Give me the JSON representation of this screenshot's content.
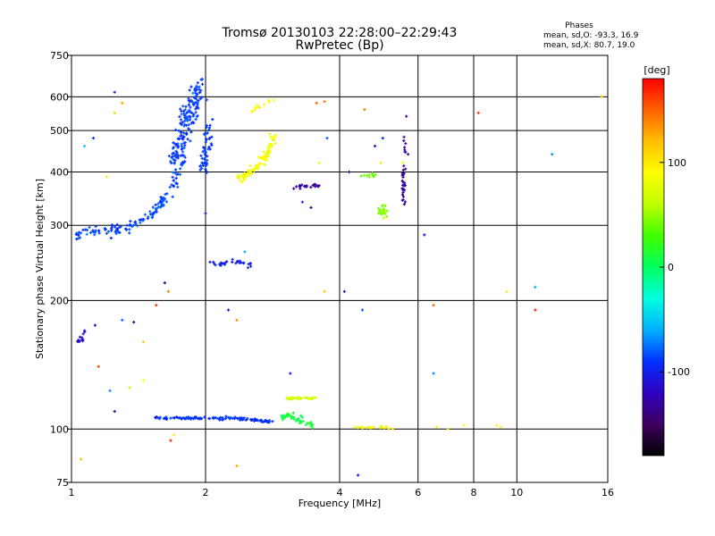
{
  "header": {
    "title_line1": "Tromsø 20130103 22:28:00–22:29:43",
    "title_line2": "RwPretec (Bp)"
  },
  "info": {
    "heading": "Phases",
    "line_o": "mean, sd,O: -93.3, 16.9",
    "line_x": "mean, sd,X:  80.7, 19.0"
  },
  "colorbar": {
    "label": "[deg]",
    "range": [
      -180,
      180
    ],
    "ticks": [
      {
        "value": 100,
        "label": "100"
      },
      {
        "value": 0,
        "label": "0"
      },
      {
        "value": -100,
        "label": "-100"
      }
    ],
    "colors": [
      "#000000",
      "#400060",
      "#3000c0",
      "#0030ff",
      "#00b0ff",
      "#00ffe0",
      "#00ff60",
      "#40ff00",
      "#c0ff00",
      "#ffff00",
      "#ffc000",
      "#ff6000",
      "#ff0000"
    ]
  },
  "chart_data": {
    "type": "scatter",
    "xlabel": "Frequency [MHz]",
    "ylabel": "Stationary phase Virtual Height [km]",
    "xscale": "log",
    "yscale": "log",
    "xlim": [
      1,
      16
    ],
    "ylim": [
      75,
      750
    ],
    "grid": true,
    "x_ticks": [
      {
        "value": 1,
        "label": "1"
      },
      {
        "value": 2,
        "label": "2"
      },
      {
        "value": 4,
        "label": "4"
      },
      {
        "value": 6,
        "label": "6"
      },
      {
        "value": 8,
        "label": "8"
      },
      {
        "value": 10,
        "label": "10"
      },
      {
        "value": 16,
        "label": "16"
      }
    ],
    "y_ticks": [
      {
        "value": 75,
        "label": "75"
      },
      {
        "value": 100,
        "label": "100"
      },
      {
        "value": 200,
        "label": "200"
      },
      {
        "value": 300,
        "label": "300"
      },
      {
        "value": 400,
        "label": "400"
      },
      {
        "value": 500,
        "label": "500"
      },
      {
        "value": 600,
        "label": "600"
      },
      {
        "value": 750,
        "label": "750"
      }
    ],
    "clusters": [
      {
        "name": "F-region O trace (low)",
        "points": [
          [
            1.0,
            288
          ],
          [
            1.03,
            285
          ],
          [
            1.06,
            290
          ],
          [
            1.1,
            292
          ],
          [
            1.15,
            289
          ],
          [
            1.2,
            293
          ],
          [
            1.25,
            292
          ],
          [
            1.3,
            295
          ],
          [
            1.35,
            297
          ],
          [
            1.4,
            302
          ],
          [
            1.45,
            310
          ],
          [
            1.5,
            318
          ],
          [
            1.55,
            328
          ],
          [
            1.6,
            340
          ],
          [
            1.65,
            355
          ],
          [
            1.7,
            375
          ],
          [
            1.72,
            390
          ],
          [
            1.75,
            410
          ],
          [
            1.78,
            430
          ]
        ],
        "phase": -85,
        "spread_x": 0.015,
        "spread_y": 0.03,
        "n": 140
      },
      {
        "name": "F-region O trace (upper)",
        "points": [
          [
            1.7,
            420
          ],
          [
            1.75,
            460
          ],
          [
            1.8,
            510
          ],
          [
            1.85,
            560
          ],
          [
            1.9,
            610
          ],
          [
            1.95,
            640
          ]
        ],
        "phase": -88,
        "spread_x": 0.04,
        "spread_y": 0.06,
        "n": 160
      },
      {
        "name": "F-region O trace (branch)",
        "points": [
          [
            1.95,
            400
          ],
          [
            2.0,
            440
          ],
          [
            2.02,
            480
          ],
          [
            2.05,
            520
          ]
        ],
        "phase": -90,
        "spread_x": 0.02,
        "spread_y": 0.05,
        "n": 50
      },
      {
        "name": "F-region X trace",
        "points": [
          [
            2.4,
            385
          ],
          [
            2.5,
            395
          ],
          [
            2.6,
            410
          ],
          [
            2.7,
            430
          ],
          [
            2.8,
            460
          ],
          [
            2.85,
            490
          ]
        ],
        "phase": 85,
        "spread_x": 0.02,
        "spread_y": 0.025,
        "n": 90
      },
      {
        "name": "X trace upper",
        "points": [
          [
            2.5,
            540
          ],
          [
            2.6,
            560
          ],
          [
            2.8,
            590
          ]
        ],
        "phase": 90,
        "spread_x": 0.015,
        "spread_y": 0.02,
        "n": 12
      },
      {
        "name": "Scatter at 245 km",
        "points": [
          [
            2.05,
            245
          ],
          [
            2.2,
            245
          ],
          [
            2.45,
            245
          ],
          [
            2.55,
            243
          ]
        ],
        "phase": -100,
        "spread_x": 0.02,
        "spread_y": 0.015,
        "n": 30
      },
      {
        "name": "Scatter at 370 km",
        "points": [
          [
            3.2,
            370
          ],
          [
            3.45,
            370
          ],
          [
            3.6,
            372
          ]
        ],
        "phase": -130,
        "spread_x": 0.02,
        "spread_y": 0.015,
        "n": 20
      },
      {
        "name": "Blob near 5 MHz (yellow)",
        "points": [
          [
            4.95,
            330
          ],
          [
            5.05,
            320
          ]
        ],
        "phase": 50,
        "spread_x": 0.015,
        "spread_y": 0.03,
        "n": 25
      },
      {
        "name": "Blob near 5.6 MHz (purple)",
        "points": [
          [
            5.6,
            330
          ],
          [
            5.55,
            350
          ],
          [
            5.6,
            480
          ]
        ],
        "phase": -130,
        "spread_x": 0.01,
        "spread_y": 0.04,
        "n": 35
      },
      {
        "name": "E-region trace",
        "points": [
          [
            1.5,
            106
          ],
          [
            1.7,
            106
          ],
          [
            1.9,
            106
          ],
          [
            2.1,
            106
          ],
          [
            2.3,
            106
          ],
          [
            2.6,
            105
          ],
          [
            2.8,
            104
          ]
        ],
        "phase": -90,
        "spread_x": 0.015,
        "spread_y": 0.007,
        "n": 120
      },
      {
        "name": "E-region X trace",
        "points": [
          [
            3.05,
            118
          ],
          [
            3.3,
            118
          ],
          [
            3.55,
            118
          ]
        ],
        "phase": 70,
        "spread_x": 0.02,
        "spread_y": 0.006,
        "n": 35
      },
      {
        "name": "Es mixed",
        "points": [
          [
            2.9,
            106
          ],
          [
            3.1,
            108
          ],
          [
            3.3,
            104
          ],
          [
            3.5,
            102
          ]
        ],
        "phase": 10,
        "spread_x": 0.03,
        "spread_y": 0.02,
        "n": 40
      },
      {
        "name": "Low E near 1 MHz",
        "points": [
          [
            1.03,
            165
          ],
          [
            1.05,
            160
          ],
          [
            1.07,
            170
          ]
        ],
        "phase": -110,
        "spread_x": 0.01,
        "spread_y": 0.02,
        "n": 12
      },
      {
        "name": "Trace near 4.5 MHz",
        "points": [
          [
            4.35,
            101
          ],
          [
            4.6,
            101
          ],
          [
            4.9,
            101
          ],
          [
            5.3,
            101
          ]
        ],
        "phase": 90,
        "spread_x": 0.02,
        "spread_y": 0.006,
        "n": 22
      },
      {
        "name": "Scatter 4.5 MHz 390 km",
        "points": [
          [
            4.45,
            392
          ],
          [
            4.65,
            392
          ],
          [
            4.8,
            392
          ]
        ],
        "phase": 40,
        "spread_x": 0.02,
        "spread_y": 0.01,
        "n": 10
      }
    ],
    "noise_points": [
      {
        "x": 1.25,
        "y": 615,
        "phase": -100
      },
      {
        "x": 1.25,
        "y": 550,
        "phase": 110
      },
      {
        "x": 1.3,
        "y": 580,
        "phase": 130
      },
      {
        "x": 1.12,
        "y": 480,
        "phase": -90
      },
      {
        "x": 1.2,
        "y": 390,
        "phase": 100
      },
      {
        "x": 1.62,
        "y": 220,
        "phase": -130
      },
      {
        "x": 1.65,
        "y": 210,
        "phase": 140
      },
      {
        "x": 1.55,
        "y": 195,
        "phase": 165
      },
      {
        "x": 1.3,
        "y": 180,
        "phase": -80
      },
      {
        "x": 1.38,
        "y": 178,
        "phase": -140
      },
      {
        "x": 1.45,
        "y": 160,
        "phase": 120
      },
      {
        "x": 1.13,
        "y": 175,
        "phase": -110
      },
      {
        "x": 1.15,
        "y": 140,
        "phase": 160
      },
      {
        "x": 1.35,
        "y": 125,
        "phase": 60
      },
      {
        "x": 1.22,
        "y": 123,
        "phase": -70
      },
      {
        "x": 1.45,
        "y": 130,
        "phase": 90
      },
      {
        "x": 1.25,
        "y": 110,
        "phase": -120
      },
      {
        "x": 1.67,
        "y": 94,
        "phase": 170
      },
      {
        "x": 1.7,
        "y": 97,
        "phase": 100
      },
      {
        "x": 1.05,
        "y": 85,
        "phase": 120
      },
      {
        "x": 2.35,
        "y": 82,
        "phase": 130
      },
      {
        "x": 2.25,
        "y": 190,
        "phase": -110
      },
      {
        "x": 2.35,
        "y": 180,
        "phase": 140
      },
      {
        "x": 2.0,
        "y": 320,
        "phase": -120
      },
      {
        "x": 2.45,
        "y": 260,
        "phase": -60
      },
      {
        "x": 3.1,
        "y": 135,
        "phase": -100
      },
      {
        "x": 3.7,
        "y": 210,
        "phase": 120
      },
      {
        "x": 3.7,
        "y": 585,
        "phase": 140
      },
      {
        "x": 3.75,
        "y": 480,
        "phase": -80
      },
      {
        "x": 3.55,
        "y": 580,
        "phase": 150
      },
      {
        "x": 3.3,
        "y": 340,
        "phase": -100
      },
      {
        "x": 3.45,
        "y": 330,
        "phase": -140
      },
      {
        "x": 3.6,
        "y": 420,
        "phase": 80
      },
      {
        "x": 4.1,
        "y": 210,
        "phase": -130
      },
      {
        "x": 4.2,
        "y": 400,
        "phase": -130
      },
      {
        "x": 4.5,
        "y": 190,
        "phase": -80
      },
      {
        "x": 4.4,
        "y": 78,
        "phase": -100
      },
      {
        "x": 4.55,
        "y": 560,
        "phase": 140
      },
      {
        "x": 4.8,
        "y": 460,
        "phase": -120
      },
      {
        "x": 4.95,
        "y": 420,
        "phase": 100
      },
      {
        "x": 5.0,
        "y": 480,
        "phase": -90
      },
      {
        "x": 5.55,
        "y": 420,
        "phase": 80
      },
      {
        "x": 5.65,
        "y": 540,
        "phase": -140
      },
      {
        "x": 5.7,
        "y": 440,
        "phase": -130
      },
      {
        "x": 6.2,
        "y": 285,
        "phase": -110
      },
      {
        "x": 6.5,
        "y": 195,
        "phase": 150
      },
      {
        "x": 6.5,
        "y": 135,
        "phase": -70
      },
      {
        "x": 6.6,
        "y": 101,
        "phase": 100
      },
      {
        "x": 7.0,
        "y": 100,
        "phase": 110
      },
      {
        "x": 7.6,
        "y": 102,
        "phase": 90
      },
      {
        "x": 8.2,
        "y": 550,
        "phase": 160
      },
      {
        "x": 9.0,
        "y": 102,
        "phase": 95
      },
      {
        "x": 9.2,
        "y": 101,
        "phase": 100
      },
      {
        "x": 9.5,
        "y": 210,
        "phase": 100
      },
      {
        "x": 11.0,
        "y": 190,
        "phase": 170
      },
      {
        "x": 11.0,
        "y": 215,
        "phase": -60
      },
      {
        "x": 12.0,
        "y": 440,
        "phase": -70
      },
      {
        "x": 15.5,
        "y": 600,
        "phase": 110
      },
      {
        "x": 1.07,
        "y": 460,
        "phase": -50
      }
    ]
  }
}
